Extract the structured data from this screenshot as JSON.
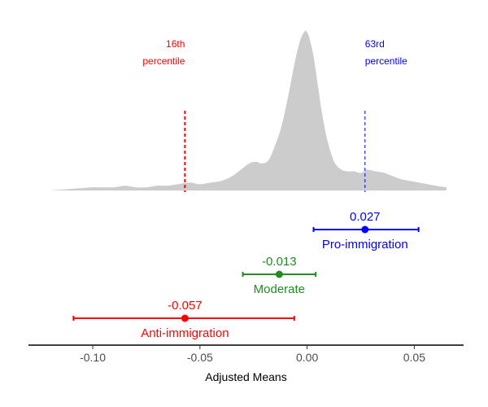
{
  "chart_data": {
    "type": "density_with_errorbars",
    "xlabel": "Adjusted Means",
    "xlim": [
      -0.13,
      0.073
    ],
    "xticks": [
      -0.1,
      -0.05,
      0.0,
      0.05
    ],
    "xtick_labels": [
      "-0.10",
      "-0.05",
      "0.00",
      "0.05"
    ],
    "density": {
      "color": "#cccccc",
      "x": [
        -0.12,
        -0.11,
        -0.1,
        -0.095,
        -0.09,
        -0.085,
        -0.08,
        -0.075,
        -0.07,
        -0.065,
        -0.06,
        -0.055,
        -0.05,
        -0.045,
        -0.04,
        -0.035,
        -0.03,
        -0.027,
        -0.024,
        -0.021,
        -0.018,
        -0.015,
        -0.012,
        -0.009,
        -0.007,
        -0.005,
        -0.003,
        -0.001,
        0.0,
        0.001,
        0.003,
        0.005,
        0.007,
        0.009,
        0.011,
        0.013,
        0.016,
        0.019,
        0.022,
        0.025,
        0.028,
        0.032,
        0.036,
        0.04,
        0.044,
        0.048,
        0.052,
        0.056,
        0.06,
        0.065
      ],
      "y": [
        0.0,
        0.01,
        0.02,
        0.02,
        0.02,
        0.03,
        0.02,
        0.02,
        0.03,
        0.03,
        0.04,
        0.05,
        0.04,
        0.05,
        0.06,
        0.09,
        0.14,
        0.17,
        0.18,
        0.17,
        0.19,
        0.28,
        0.4,
        0.58,
        0.72,
        0.85,
        0.95,
        1.0,
        0.99,
        0.96,
        0.84,
        0.66,
        0.48,
        0.34,
        0.24,
        0.17,
        0.13,
        0.12,
        0.12,
        0.11,
        0.13,
        0.12,
        0.11,
        0.09,
        0.07,
        0.06,
        0.05,
        0.04,
        0.03,
        0.02
      ]
    },
    "percentile_lines": [
      {
        "x": -0.057,
        "label_line1": "16th",
        "label_line2": "percentile",
        "color": "#ff0000",
        "align": "left"
      },
      {
        "x": 0.027,
        "label_line1": "63rd",
        "label_line2": "percentile",
        "color": "#0000ff",
        "align": "right"
      }
    ],
    "series": [
      {
        "name": "Pro-immigration",
        "estimate": 0.027,
        "lower": 0.003,
        "upper": 0.052,
        "value_label": "0.027",
        "color": "#0000ff"
      },
      {
        "name": "Moderate",
        "estimate": -0.013,
        "lower": -0.03,
        "upper": 0.004,
        "value_label": "-0.013",
        "color": "#228b22"
      },
      {
        "name": "Anti-immigration",
        "estimate": -0.057,
        "lower": -0.109,
        "upper": -0.006,
        "value_label": "-0.057",
        "color": "#ff0000"
      }
    ]
  }
}
